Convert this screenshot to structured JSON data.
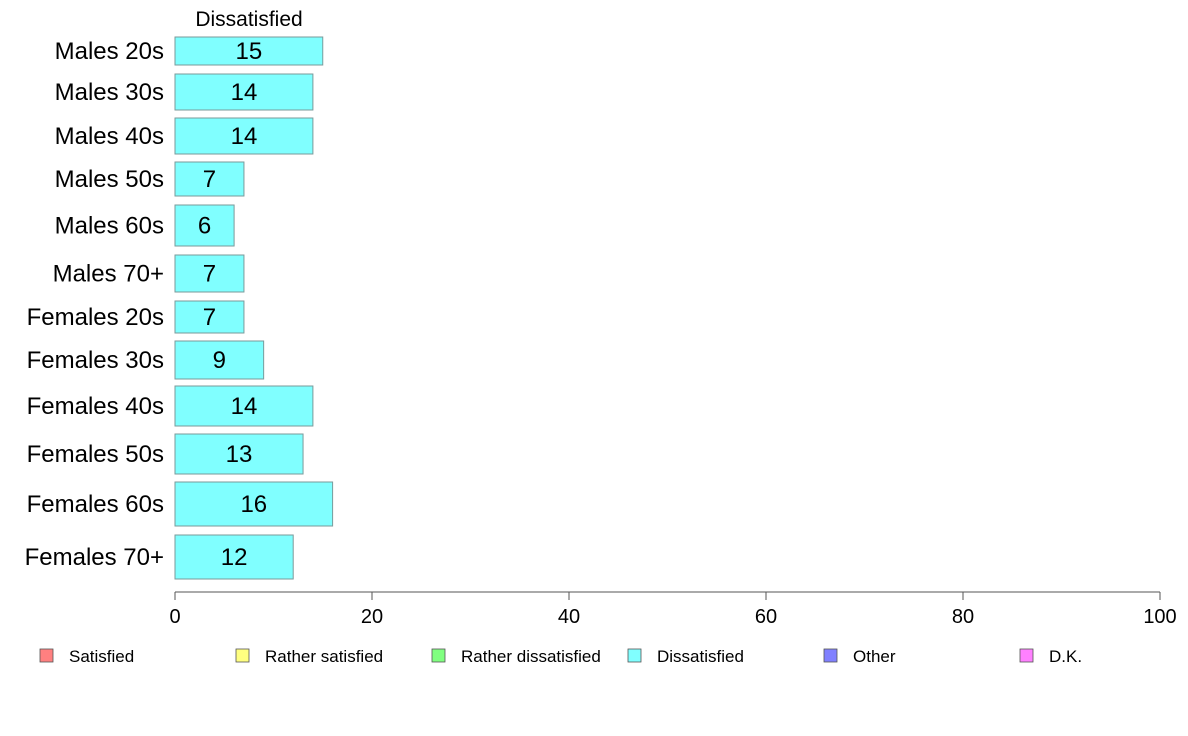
{
  "chart_data": {
    "type": "bar",
    "orientation": "horizontal",
    "stacked": true,
    "column_header": "Dissatisfied",
    "categories": [
      "Males 20s",
      "Males 30s",
      "Males 40s",
      "Males 50s",
      "Males 60s",
      "Males 70+",
      "Females 20s",
      "Females 30s",
      "Females 40s",
      "Females 50s",
      "Females 60s",
      "Females 70+"
    ],
    "series": [
      {
        "name": "Dissatisfied",
        "color": "#80ffff",
        "values": [
          15,
          14,
          14,
          7,
          6,
          7,
          7,
          9,
          14,
          13,
          16,
          12
        ]
      }
    ],
    "xlim": [
      0,
      100
    ],
    "xticks": [
      0,
      20,
      40,
      60,
      80,
      100
    ],
    "grid": false,
    "legend": {
      "position": "bottom",
      "items": [
        {
          "label": "Satisfied",
          "color": "#ff8080"
        },
        {
          "label": "Rather satisfied",
          "color": "#ffff80"
        },
        {
          "label": "Rather dissatisfied",
          "color": "#80ff80"
        },
        {
          "label": "Dissatisfied",
          "color": "#80ffff"
        },
        {
          "label": "Other",
          "color": "#8080ff"
        },
        {
          "label": "D.K.",
          "color": "#ff80ff"
        }
      ]
    }
  }
}
